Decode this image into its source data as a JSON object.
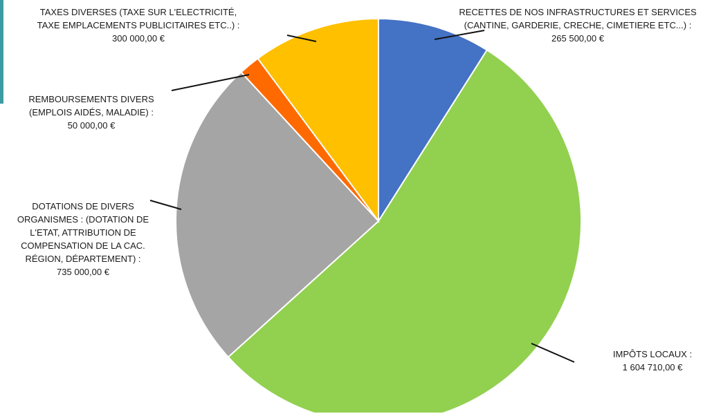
{
  "accent_bar_color": "#3d9ca3",
  "chart_data": {
    "type": "pie",
    "title": "",
    "start_angle_deg": 0,
    "direction": "clockwise",
    "slices": [
      {
        "label_lines": [
          "RECETTES DE NOS INFRASTRUCTURES ET SERVICES",
          "(CANTINE, GARDERIE, CRECHE, CIMETIERE ETC...) :",
          "265 500,00 €"
        ],
        "value": 265500.0,
        "color": "#4472c4"
      },
      {
        "label_lines": [
          "IMPÔTS LOCAUX :",
          "1 604 710,00 €"
        ],
        "value": 1604710.0,
        "color": "#92d050"
      },
      {
        "label_lines": [
          "DOTATIONS DE DIVERS",
          "ORGANISMES : (DOTATION DE",
          "L'ETAT, ATTRIBUTION DE",
          "COMPENSATION DE LA CAC.",
          "RÉGION, DÉPARTEMENT) :",
          "735 000,00 €"
        ],
        "value": 735000.0,
        "color": "#a5a5a5"
      },
      {
        "label_lines": [
          "REMBOURSEMENTS DIVERS",
          "(EMPLOIS AIDÉS, MALADIE) :",
          "50 000,00 €"
        ],
        "value": 50000.0,
        "color": "#ff6a00"
      },
      {
        "label_lines": [
          "TAXES DIVERSES (TAXE SUR L'ELECTRICITÉ,",
          "TAXE EMPLACEMENTS PUBLICITAIRES ETC..) :",
          "300 000,00 €"
        ],
        "value": 300000.0,
        "color": "#ffc000"
      }
    ]
  }
}
